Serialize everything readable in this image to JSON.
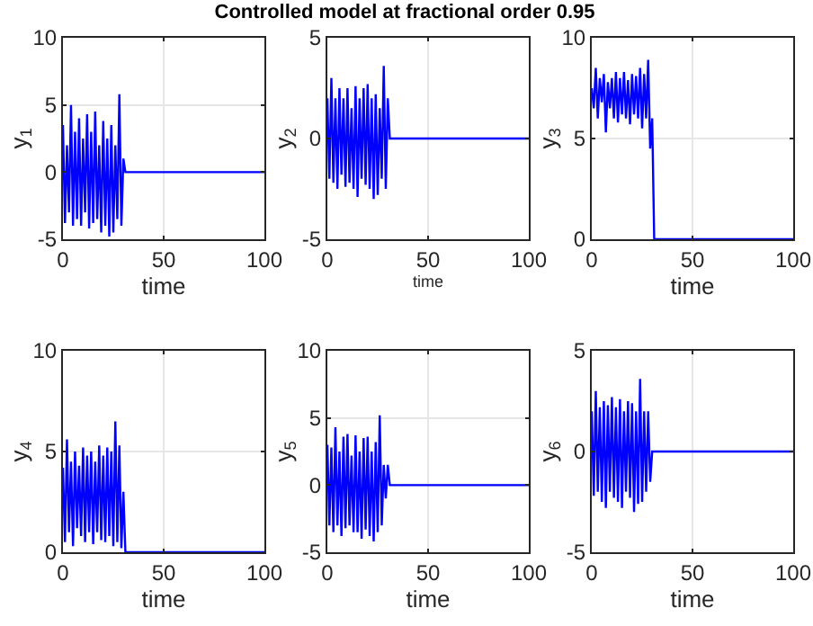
{
  "chart_data": [
    {
      "type": "line",
      "xlabel": "time",
      "ylabel": "y$_{1}$",
      "x": [
        0,
        1,
        2,
        3,
        4,
        5,
        6,
        7,
        8,
        9,
        10,
        11,
        12,
        13,
        14,
        15,
        16,
        17,
        18,
        19,
        20,
        21,
        22,
        23,
        24,
        25,
        26,
        27,
        28,
        29,
        30,
        31,
        100
      ],
      "color": "#0000ff",
      "values": [
        3.5,
        -3.8,
        2,
        -3,
        5,
        -4,
        3,
        -3.5,
        4,
        -4,
        2.5,
        -3,
        4.3,
        -4.2,
        3,
        -3.8,
        4.5,
        -3.5,
        2,
        -4.5,
        3.8,
        -4,
        2.5,
        -4.8,
        3.5,
        -4.5,
        2,
        -3.5,
        5.8,
        -4,
        1,
        0,
        0
      ],
      "xlim": [
        0,
        100
      ],
      "ylim": [
        -5,
        10
      ],
      "xticks": [
        0,
        50,
        100
      ],
      "yticks": [
        -5,
        0,
        5,
        10
      ],
      "grid": true
    },
    {
      "type": "line",
      "title": "Controlled model at fractional order 0.95",
      "xlabel": "time",
      "ylabel": "y$_{2}$",
      "x": [
        0,
        1,
        2,
        3,
        4,
        5,
        6,
        7,
        8,
        9,
        10,
        11,
        12,
        13,
        14,
        15,
        16,
        17,
        18,
        19,
        20,
        21,
        22,
        23,
        24,
        25,
        26,
        27,
        28,
        29,
        30,
        31,
        100
      ],
      "color": "#0000ff",
      "values": [
        2,
        -2,
        3,
        -2.2,
        2,
        -2.5,
        2.5,
        -1.8,
        2,
        -2.4,
        2.5,
        -2.2,
        1.5,
        -2.5,
        2.6,
        -2.9,
        2,
        -2,
        2.5,
        -2.3,
        2.7,
        -2.5,
        2,
        -3,
        2.2,
        -2.8,
        1.5,
        -2,
        3.6,
        -2.5,
        2,
        0,
        0
      ],
      "xlim": [
        0,
        100
      ],
      "ylim": [
        -5,
        5
      ],
      "xticks": [
        0,
        50,
        100
      ],
      "yticks": [
        -5,
        0,
        5
      ],
      "grid": true
    },
    {
      "type": "line",
      "xlabel": "time",
      "ylabel": "y$_{3}$",
      "x": [
        0,
        1,
        2,
        3,
        4,
        5,
        6,
        7,
        8,
        9,
        10,
        11,
        12,
        13,
        14,
        15,
        16,
        17,
        18,
        19,
        20,
        21,
        22,
        23,
        24,
        25,
        26,
        27,
        28,
        29,
        30,
        31,
        100
      ],
      "color": "#0000ff",
      "values": [
        7.5,
        6.5,
        8.5,
        6,
        8,
        6.8,
        8.2,
        5.3,
        7.8,
        6.5,
        8,
        6,
        8.3,
        5.8,
        8,
        6.2,
        8.3,
        6,
        7.9,
        5.7,
        8.2,
        6.2,
        8.1,
        6,
        8.5,
        5.5,
        8.2,
        6,
        8.9,
        4.5,
        6,
        0,
        0
      ],
      "xlim": [
        0,
        100
      ],
      "ylim": [
        0,
        10
      ],
      "xticks": [
        0,
        50,
        100
      ],
      "yticks": [
        0,
        5,
        10
      ],
      "grid": true
    },
    {
      "type": "line",
      "xlabel": "time",
      "ylabel": "y$_{4}$",
      "x": [
        0,
        1,
        2,
        3,
        4,
        5,
        6,
        7,
        8,
        9,
        10,
        11,
        12,
        13,
        14,
        15,
        16,
        17,
        18,
        19,
        20,
        21,
        22,
        23,
        24,
        25,
        26,
        27,
        28,
        29,
        30,
        31,
        100
      ],
      "color": "#0000ff",
      "values": [
        4.2,
        0.5,
        5.6,
        1,
        4.5,
        0.3,
        5,
        1.2,
        4.3,
        0.8,
        5.2,
        0.5,
        4.8,
        1,
        5,
        0.4,
        4.5,
        1,
        5.3,
        0.6,
        4.8,
        0.5,
        5.2,
        0.8,
        5,
        0.3,
        6.5,
        0.5,
        5.3,
        0.2,
        3,
        0,
        0
      ],
      "xlim": [
        0,
        100
      ],
      "ylim": [
        0,
        10
      ],
      "xticks": [
        0,
        50,
        100
      ],
      "yticks": [
        0,
        5,
        10
      ],
      "grid": true
    },
    {
      "type": "line",
      "xlabel": "time",
      "ylabel": "y$_{5}$",
      "x": [
        0,
        1,
        2,
        3,
        4,
        5,
        6,
        7,
        8,
        9,
        10,
        11,
        12,
        13,
        14,
        15,
        16,
        17,
        18,
        19,
        20,
        21,
        22,
        23,
        24,
        25,
        26,
        27,
        28,
        29,
        30,
        31,
        100
      ],
      "color": "#0000ff",
      "values": [
        3,
        -3,
        2.8,
        -3.5,
        4.3,
        -3,
        2.5,
        -3.8,
        3.6,
        -3.2,
        3.8,
        -3,
        2.2,
        -3.5,
        3.7,
        -3.5,
        2.5,
        -4,
        3.5,
        -3.3,
        3.6,
        -3.8,
        2.5,
        -4.2,
        3.2,
        -3.5,
        5.2,
        -3,
        1.5,
        -1,
        1.5,
        0,
        0
      ],
      "xlim": [
        0,
        100
      ],
      "ylim": [
        -5,
        10
      ],
      "xticks": [
        0,
        50,
        100
      ],
      "yticks": [
        -5,
        0,
        5,
        10
      ],
      "grid": true
    },
    {
      "type": "line",
      "xlabel": "time",
      "ylabel": "y$_{6}$",
      "x": [
        0,
        1,
        2,
        3,
        4,
        5,
        6,
        7,
        8,
        9,
        10,
        11,
        12,
        13,
        14,
        15,
        16,
        17,
        18,
        19,
        20,
        21,
        22,
        23,
        24,
        25,
        26,
        27,
        28,
        29,
        30,
        31,
        100
      ],
      "color": "#0000ff",
      "values": [
        2,
        -2.2,
        3,
        -2,
        2.2,
        -2.5,
        2.5,
        -2.8,
        2.3,
        -2,
        2.7,
        -2.3,
        2.2,
        -2.5,
        2.6,
        -2.8,
        2,
        -2,
        2.5,
        -2.3,
        2.4,
        -3,
        2,
        -2.6,
        3.6,
        -2.5,
        2,
        -2,
        2,
        -1.5,
        0,
        0,
        0
      ],
      "xlim": [
        0,
        100
      ],
      "ylim": [
        -5,
        5
      ],
      "xticks": [
        0,
        50,
        100
      ],
      "yticks": [
        -5,
        0,
        5
      ],
      "grid": true
    }
  ]
}
